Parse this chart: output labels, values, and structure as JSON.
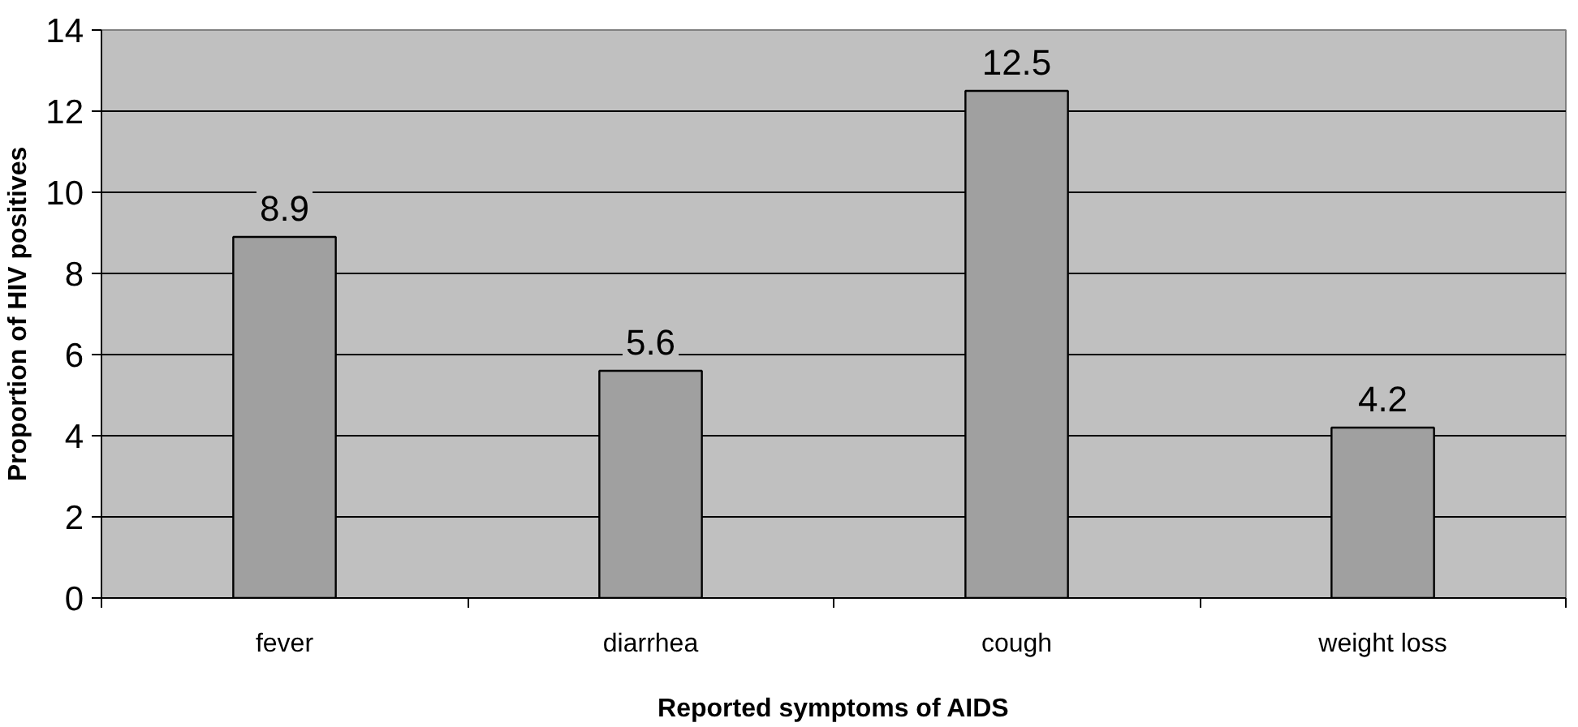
{
  "chart_data": {
    "type": "bar",
    "xlabel": "Reported symptoms of AIDS",
    "ylabel": "Proportion of HIV positives",
    "categories": [
      "fever",
      "diarrhea",
      "cough",
      "weight loss"
    ],
    "values": [
      8.9,
      5.6,
      12.5,
      4.2
    ],
    "color": "#a0a0a0",
    "ylim": [
      0,
      14
    ],
    "yticks": [
      0,
      2,
      4,
      6,
      8,
      10,
      12,
      14
    ],
    "grid": "y",
    "data_labels": true
  }
}
